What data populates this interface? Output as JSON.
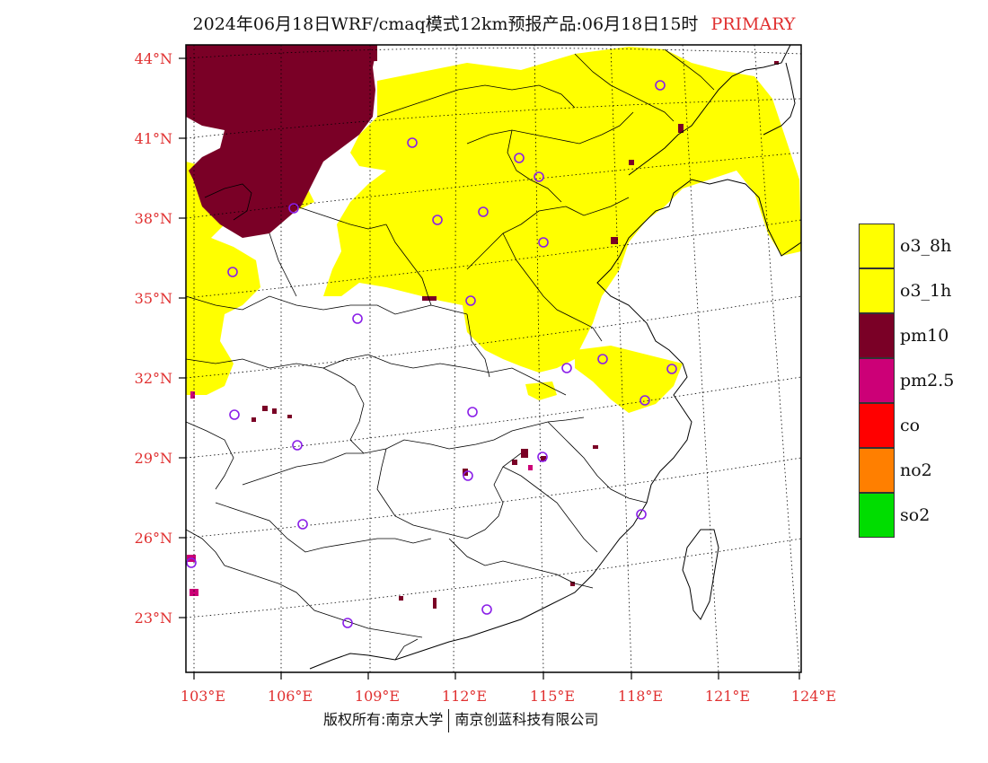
{
  "title": {
    "main": "2024年06月18日WRF/cmaq模式12km预报产品:06月18日15时",
    "tag": "PRIMARY"
  },
  "lat_labels": [
    "44°N",
    "41°N",
    "38°N",
    "35°N",
    "32°N",
    "29°N",
    "26°N",
    "23°N"
  ],
  "lon_labels": [
    "103°E",
    "106°E",
    "109°E",
    "112°E",
    "115°E",
    "118°E",
    "121°E",
    "124°E"
  ],
  "legend": [
    {
      "label": "o3_8h",
      "color": "#ffff00"
    },
    {
      "label": "o3_1h",
      "color": "#ffff00"
    },
    {
      "label": "pm10",
      "color": "#7a0026"
    },
    {
      "label": "pm2.5",
      "color": "#cc0077"
    },
    {
      "label": "co",
      "color": "#ff0000"
    },
    {
      "label": "no2",
      "color": "#ff7f00"
    },
    {
      "label": "so2",
      "color": "#00dd00"
    }
  ],
  "footer": {
    "left": "版权所有:南京大学",
    "right": "南京创蓝科技有限公司"
  }
}
